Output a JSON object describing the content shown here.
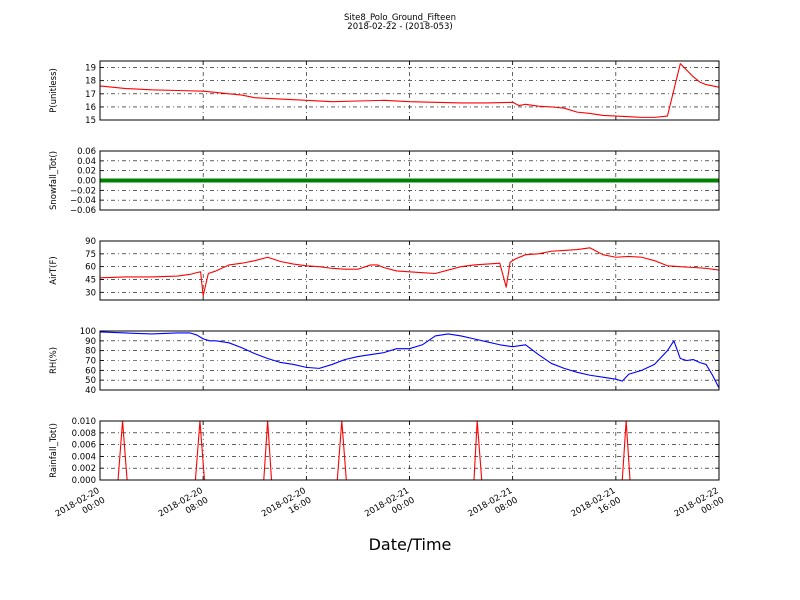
{
  "figure": {
    "title": "Site8_Polo_Ground_Fifteen",
    "subtitle": "2018-02-22 - (2018-053)",
    "xlabel": "Date/Time"
  },
  "chart_data": [
    {
      "type": "line",
      "ylabel": "P(unitless)",
      "ylim": [
        15,
        19.5
      ],
      "yticks": [
        "15",
        "16",
        "17",
        "18",
        "19"
      ],
      "grid": true,
      "xlim": [
        0,
        48
      ],
      "x_unit": "hours since 2018-02-20 00:00",
      "series": [
        {
          "color": "#ff0000",
          "x": [
            0,
            2,
            4,
            6,
            8,
            9,
            10,
            11,
            12,
            14,
            16,
            18,
            20,
            22,
            24,
            26,
            28,
            30,
            32,
            32.5,
            33,
            34,
            35,
            36,
            37,
            38,
            39,
            40,
            41,
            42,
            43,
            44,
            45,
            46,
            46.5,
            47,
            48
          ],
          "values": [
            17.6,
            17.4,
            17.3,
            17.25,
            17.2,
            17.1,
            17.0,
            16.9,
            16.7,
            16.6,
            16.5,
            16.4,
            16.45,
            16.5,
            16.4,
            16.35,
            16.3,
            16.3,
            16.35,
            16.1,
            16.2,
            16.05,
            16.0,
            15.9,
            15.6,
            15.5,
            15.35,
            15.3,
            15.25,
            15.2,
            15.2,
            15.3,
            19.3,
            18.3,
            17.9,
            17.7,
            17.5
          ]
        }
      ]
    },
    {
      "type": "line",
      "ylabel": "Snowfall_Tot()",
      "ylim": [
        -0.06,
        0.06
      ],
      "yticks": [
        "−0.06",
        "−0.04",
        "−0.02",
        "0.00",
        "0.02",
        "0.04",
        "0.06"
      ],
      "grid": true,
      "xlim": [
        0,
        48
      ],
      "series": [
        {
          "color": "#008000",
          "style": "thick",
          "x": [
            0,
            48
          ],
          "values": [
            0,
            0
          ]
        }
      ]
    },
    {
      "type": "line",
      "ylabel": "AirT(F)",
      "ylim": [
        21,
        90
      ],
      "yticks": [
        "30",
        "45",
        "60",
        "75",
        "90"
      ],
      "grid": true,
      "xlim": [
        0,
        48
      ],
      "series": [
        {
          "color": "#ff0000",
          "x": [
            0,
            2,
            4,
            6,
            7,
            7.5,
            7.8,
            8.0,
            8.4,
            9,
            10,
            11,
            12,
            13,
            14,
            15,
            16,
            17,
            18,
            19,
            20,
            21,
            21.5,
            22,
            23,
            24,
            25,
            26,
            27,
            28,
            29,
            30,
            31,
            31.5,
            31.8,
            32.2,
            33,
            34,
            35,
            36,
            37,
            38,
            39,
            40,
            41,
            42,
            43,
            44,
            45,
            46,
            47,
            48
          ],
          "values": [
            47,
            48,
            48,
            49,
            51,
            53,
            54,
            26,
            52,
            55,
            62,
            64,
            67,
            71,
            66,
            63,
            61,
            60,
            58,
            57,
            57,
            62,
            62,
            59,
            55,
            54,
            53,
            52,
            56,
            60,
            62,
            63,
            64,
            36,
            65,
            69,
            74,
            75,
            78,
            79,
            80,
            82,
            74,
            71,
            72,
            71,
            67,
            61,
            60,
            59,
            58,
            56
          ]
        }
      ]
    },
    {
      "type": "line",
      "ylabel": "RH(%)",
      "ylim": [
        40,
        100
      ],
      "yticks": [
        "40",
        "50",
        "60",
        "70",
        "80",
        "90",
        "100"
      ],
      "grid": true,
      "xlim": [
        0,
        48
      ],
      "series": [
        {
          "color": "#0000ff",
          "x": [
            0,
            2,
            4,
            6,
            7,
            7.5,
            8,
            8.5,
            9,
            10,
            11,
            12,
            13,
            14,
            15,
            16,
            17,
            18,
            19,
            20,
            21,
            22,
            23,
            24,
            25,
            26,
            27,
            28,
            29,
            30,
            31,
            32,
            33,
            34,
            35,
            36,
            37,
            38,
            39,
            40,
            40.5,
            41,
            42,
            43,
            44,
            44.5,
            45,
            45.5,
            46,
            46.5,
            47,
            47.5,
            48
          ],
          "values": [
            99,
            98,
            97,
            98,
            98,
            96,
            92,
            90,
            90,
            88,
            83,
            77,
            72,
            68,
            66,
            63,
            62,
            66,
            71,
            74,
            76,
            78,
            82,
            82,
            86,
            95,
            97,
            95,
            92,
            89,
            86,
            84,
            86,
            76,
            67,
            62,
            58,
            55,
            53,
            51,
            49,
            56,
            60,
            66,
            80,
            90,
            72,
            70,
            71,
            68,
            66,
            55,
            42
          ]
        }
      ]
    },
    {
      "type": "line",
      "ylabel": "Rainfall_Tot()",
      "ylim": [
        0,
        0.01
      ],
      "yticks": [
        "0.000",
        "0.002",
        "0.004",
        "0.006",
        "0.008",
        "0.010"
      ],
      "grid": true,
      "xlim": [
        0,
        48
      ],
      "series": [
        {
          "color": "#ff0000",
          "x": [
            0,
            1.4,
            1.75,
            2.1,
            7.4,
            7.75,
            8.1,
            12.7,
            13.0,
            13.3,
            18.4,
            18.75,
            19.1,
            29.0,
            29.25,
            29.6,
            40.5,
            40.8,
            41.1,
            48
          ],
          "values": [
            0,
            0,
            0.01,
            0,
            0,
            0.01,
            0,
            0,
            0.01,
            0,
            0,
            0.01,
            0,
            0,
            0.01,
            0,
            0,
            0.01,
            0,
            0
          ]
        }
      ]
    }
  ],
  "x_ticks": [
    {
      "hours": 0,
      "line1": "2018-02-20",
      "line2": "00:00"
    },
    {
      "hours": 8,
      "line1": "2018-02-20",
      "line2": "08:00"
    },
    {
      "hours": 16,
      "line1": "2018-02-20",
      "line2": "16:00"
    },
    {
      "hours": 24,
      "line1": "2018-02-21",
      "line2": "00:00"
    },
    {
      "hours": 32,
      "line1": "2018-02-21",
      "line2": "08:00"
    },
    {
      "hours": 40,
      "line1": "2018-02-21",
      "line2": "16:00"
    },
    {
      "hours": 48,
      "line1": "2018-02-22",
      "line2": "00:00"
    }
  ]
}
